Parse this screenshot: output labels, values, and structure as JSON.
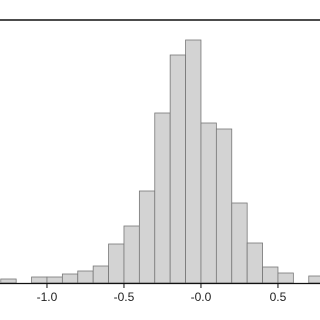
{
  "chart_data": {
    "type": "histogram",
    "bins": [
      -1.3,
      -1.2,
      -1.1,
      -1.0,
      -0.9,
      -0.8,
      -0.7,
      -0.6,
      -0.5,
      -0.4,
      -0.3,
      -0.2,
      -0.1,
      0.0,
      0.1,
      0.2,
      0.3,
      0.4,
      0.5,
      0.6,
      0.7,
      0.8
    ],
    "values": [
      4,
      0,
      6,
      6,
      9,
      12,
      17,
      39,
      57,
      92,
      170,
      228,
      243,
      160,
      154,
      80,
      40,
      16,
      10,
      0,
      7
    ],
    "color": "#d3d3d3",
    "xlim": [
      -1.305,
      0.773
    ],
    "ylim": [
      0,
      263
    ],
    "xticks": [
      {
        "value": -1,
        "label": "-1.0"
      },
      -0.5,
      {
        "value": 0,
        "label": "-0.0"
      },
      0.5
    ]
  }
}
